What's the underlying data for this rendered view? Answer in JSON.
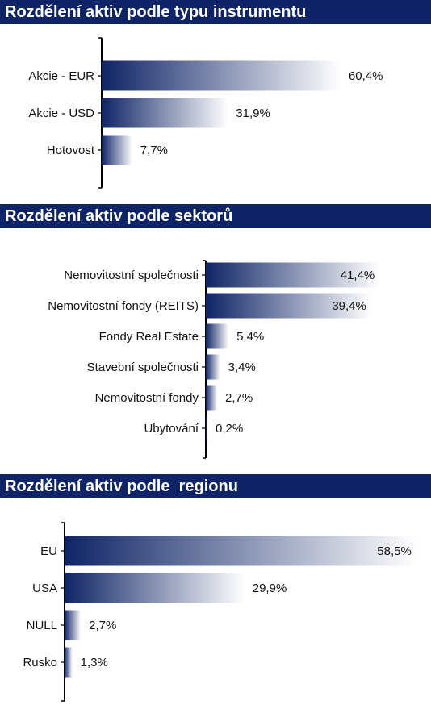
{
  "chart_data": [
    {
      "type": "bar",
      "orientation": "horizontal",
      "title": "Rozdělení aktiv podle typu instrumentu",
      "categories": [
        "Akcie - EUR",
        "Akcie - USD",
        "Hotovost"
      ],
      "values": [
        60.4,
        31.9,
        7.7
      ],
      "value_labels": [
        "60,4%",
        "31,9%",
        "7,7%"
      ],
      "xlim": [
        0,
        100
      ],
      "grid": false,
      "bar_color": "#0f2466"
    },
    {
      "type": "bar",
      "orientation": "horizontal",
      "title": "Rozdělení aktiv podle sektorů",
      "categories": [
        "Nemovitostní společnosti",
        "Nemovitostní fondy (REITS)",
        "Fondy Real Estate",
        "Stavební společnosti",
        "Nemovitostní fondy",
        "Ubytování"
      ],
      "values": [
        41.4,
        39.4,
        5.4,
        3.4,
        2.7,
        0.2
      ],
      "value_labels": [
        "41,4%",
        "39,4%",
        "5,4%",
        "3,4%",
        "2,7%",
        "0,2%"
      ],
      "xlim": [
        0,
        100
      ],
      "grid": false,
      "bar_color": "#0f2466"
    },
    {
      "type": "bar",
      "orientation": "horizontal",
      "title": "Rozdělení aktiv podle  regionu",
      "categories": [
        "EU",
        "USA",
        "NULL",
        "Rusko"
      ],
      "values": [
        58.5,
        29.9,
        2.7,
        1.3
      ],
      "value_labels": [
        "58,5%",
        "29,9%",
        "2,7%",
        "1,3%"
      ],
      "xlim": [
        0,
        100
      ],
      "grid": false,
      "bar_color": "#0f2466"
    }
  ]
}
